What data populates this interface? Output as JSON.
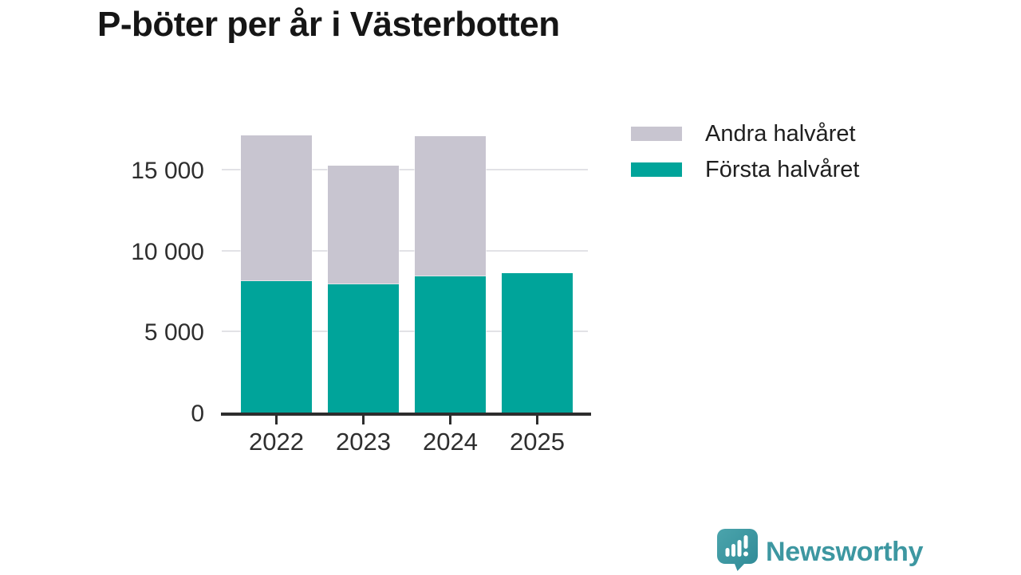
{
  "title": "P-böter per år i Västerbotten",
  "legend": {
    "items": [
      {
        "label": "Andra halvåret",
        "color": "#c8c5d0"
      },
      {
        "label": "Första halvåret",
        "color": "#00a49a"
      }
    ]
  },
  "chart_data": {
    "type": "bar",
    "stacked": true,
    "title": "P-böter per år i Västerbotten",
    "categories": [
      "2022",
      "2023",
      "2024",
      "2025"
    ],
    "series": [
      {
        "name": "Första halvåret",
        "color": "#00a49a",
        "values": [
          8100,
          7900,
          8400,
          8600
        ]
      },
      {
        "name": "Andra halvåret",
        "color": "#c8c5d0",
        "values": [
          9000,
          7350,
          8650,
          0
        ]
      }
    ],
    "xlabel": "",
    "ylabel": "",
    "ylim": [
      0,
      17500
    ],
    "yticks": [
      {
        "value": 0,
        "label": "0"
      },
      {
        "value": 5000,
        "label": "5 000"
      },
      {
        "value": 10000,
        "label": "10 000"
      },
      {
        "value": 15000,
        "label": "15 000"
      }
    ],
    "grid": true,
    "legend_position": "top-right"
  },
  "colors": {
    "first_half": "#00a49a",
    "second_half": "#c8c5d0",
    "axis": "#2d2d2d",
    "gridline": "#e2e2e6",
    "brand": "#3d97a1"
  },
  "branding": {
    "name": "Newsworthy"
  }
}
